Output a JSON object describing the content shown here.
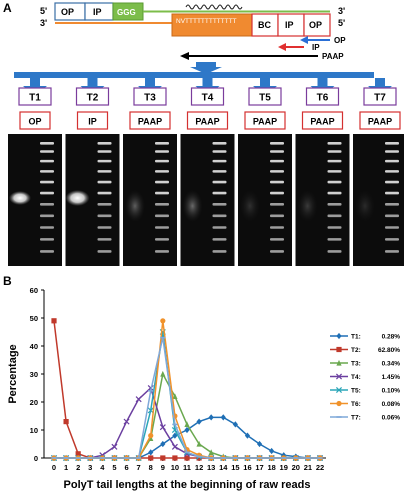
{
  "panel_a": {
    "letter": "A",
    "top_strand": {
      "prime_left": "5'",
      "prime_right": "3'",
      "op": "OP",
      "ip": "IP",
      "ggg": "GGG",
      "op_color": "#ffffff",
      "ggg_color": "#7cbd4a",
      "strand_color": "#7cbd4a"
    },
    "bottom_strand": {
      "prime_left": "3'",
      "prime_right": "5'",
      "nvt": "NVTTTTTTTTTTTTT",
      "bc": "BC",
      "ip": "IP",
      "op": "OP",
      "nvt_color": "#f08a30",
      "strand_color": "#f08a30"
    },
    "primers": {
      "op": "OP",
      "ip": "IP",
      "paap": "PAAP",
      "op_color": "#2a6fd6",
      "ip_color": "#e03030"
    },
    "arrow_color": "#2e78c8",
    "tubes": [
      {
        "tube": "T1",
        "primer": "OP"
      },
      {
        "tube": "T2",
        "primer": "IP"
      },
      {
        "tube": "T3",
        "primer": "PAAP"
      },
      {
        "tube": "T4",
        "primer": "PAAP"
      },
      {
        "tube": "T5",
        "primer": "PAAP"
      },
      {
        "tube": "T6",
        "primer": "PAAP"
      },
      {
        "tube": "T7",
        "primer": "PAAP"
      }
    ],
    "tube_border_color": "#7a3c9c",
    "primer_border_color": "#d43030"
  },
  "panel_b": {
    "letter": "B",
    "chart_data": {
      "type": "line",
      "ylabel": "Percentage",
      "xlabel": "PolyT tail lengths at the beginning of raw reads",
      "x": [
        0,
        1,
        2,
        3,
        4,
        5,
        6,
        7,
        8,
        9,
        10,
        11,
        12,
        13,
        14,
        15,
        16,
        17,
        18,
        19,
        20,
        21,
        22
      ],
      "ylim": [
        0,
        60
      ],
      "yticks": [
        0,
        10,
        20,
        30,
        40,
        50,
        60
      ],
      "grid": false,
      "legend_position": "right",
      "series": [
        {
          "name": "T1:",
          "pct": "0.28%",
          "color": "#1f6fb5",
          "marker": "diamond",
          "values": [
            0,
            0,
            0,
            0,
            0,
            0,
            0,
            0,
            2,
            5,
            8,
            10,
            13,
            14.5,
            14.5,
            12,
            8,
            5,
            2.5,
            1,
            0.5,
            0,
            0
          ]
        },
        {
          "name": "T2:",
          "pct": "62.80%",
          "color": "#c0392b",
          "marker": "square",
          "values": [
            49,
            13,
            1.5,
            0,
            0,
            0,
            0,
            0,
            0,
            0,
            0,
            0,
            0,
            0,
            0,
            0,
            0,
            0,
            0,
            0,
            0,
            0,
            0
          ]
        },
        {
          "name": "T3:",
          "pct": "0.34%",
          "color": "#6aa84f",
          "marker": "triangle",
          "values": [
            0,
            0,
            0,
            0,
            0,
            0,
            0,
            0,
            7,
            30,
            22,
            12,
            5,
            2,
            0.5,
            0,
            0,
            0,
            0,
            0,
            0,
            0,
            0
          ]
        },
        {
          "name": "T4:",
          "pct": "1.45%",
          "color": "#6b3fa0",
          "marker": "x",
          "values": [
            0,
            0,
            0,
            0,
            1,
            4,
            13,
            21,
            25,
            11,
            4,
            1.5,
            0.5,
            0,
            0,
            0,
            0,
            0,
            0,
            0,
            0,
            0,
            0
          ]
        },
        {
          "name": "T5:",
          "pct": "0.10%",
          "color": "#2aa6b8",
          "marker": "x",
          "values": [
            0,
            0,
            0,
            0,
            0,
            0,
            0,
            0,
            17,
            45,
            10,
            2,
            0.5,
            0,
            0,
            0,
            0,
            0,
            0,
            0,
            0,
            0,
            0
          ]
        },
        {
          "name": "T6:",
          "pct": "0.08%",
          "color": "#f0922b",
          "marker": "circle",
          "values": [
            0,
            0,
            0,
            0,
            0,
            0,
            0,
            0,
            8,
            49,
            15,
            3,
            1,
            0,
            0,
            0,
            0,
            0,
            0,
            0,
            0,
            0,
            0
          ]
        },
        {
          "name": "T7:",
          "pct": "0.06%",
          "color": "#7fa8d9",
          "marker": "dash",
          "values": [
            0,
            0,
            0,
            0,
            0,
            0,
            0,
            0,
            24,
            43,
            12,
            2,
            0.5,
            0,
            0,
            0,
            0,
            0,
            0,
            0,
            0,
            0,
            0
          ]
        }
      ]
    }
  }
}
